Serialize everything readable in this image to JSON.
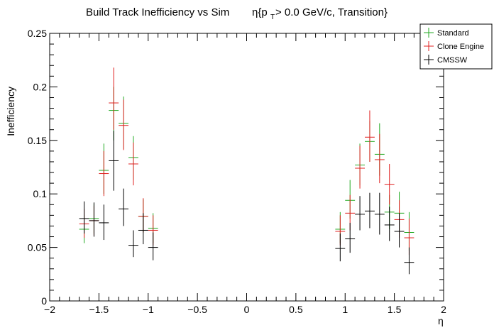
{
  "chart_data": {
    "type": "scatter",
    "title": "Build Track Inefficiency vs Sim",
    "title_eta": "η{p",
    "title_sub": "T",
    "title_rest": " > 0.0 GeV/c, Transition}",
    "xlabel": "η",
    "ylabel": "Inefficiency",
    "xlim": [
      -2,
      2
    ],
    "ylim": [
      0,
      0.25
    ],
    "x_bin_halfwidth": 0.05,
    "x_ticks": [
      {
        "value": -2,
        "label": "−2"
      },
      {
        "value": -1.5,
        "label": "−1.5"
      },
      {
        "value": -1,
        "label": "−1"
      },
      {
        "value": -0.5,
        "label": "−0.5"
      },
      {
        "value": 0,
        "label": "0"
      },
      {
        "value": 0.5,
        "label": "0.5"
      },
      {
        "value": 1,
        "label": "1"
      },
      {
        "value": 1.5,
        "label": "1.5"
      },
      {
        "value": 2,
        "label": "2"
      }
    ],
    "y_ticks": [
      {
        "value": 0,
        "label": "0"
      },
      {
        "value": 0.05,
        "label": "0.05"
      },
      {
        "value": 0.1,
        "label": "0.1"
      },
      {
        "value": 0.15,
        "label": "0.15"
      },
      {
        "value": 0.2,
        "label": "0.2"
      },
      {
        "value": 0.25,
        "label": "0.25"
      }
    ],
    "legend_position": "top-right",
    "series": [
      {
        "name": "Standard",
        "color": "#22aa22",
        "points": [
          {
            "x": -1.65,
            "y": 0.067,
            "lo": 0.054,
            "hi": 0.08
          },
          {
            "x": -1.55,
            "y": 0.077,
            "lo": 0.063,
            "hi": 0.091
          },
          {
            "x": -1.45,
            "y": 0.122,
            "lo": 0.1,
            "hi": 0.147
          },
          {
            "x": -1.35,
            "y": 0.178,
            "lo": 0.15,
            "hi": 0.2
          },
          {
            "x": -1.25,
            "y": 0.166,
            "lo": 0.142,
            "hi": 0.191
          },
          {
            "x": -1.15,
            "y": 0.134,
            "lo": 0.113,
            "hi": 0.154
          },
          {
            "x": -1.05,
            "y": 0.079,
            "lo": 0.064,
            "hi": 0.095
          },
          {
            "x": -0.95,
            "y": 0.068,
            "lo": 0.054,
            "hi": 0.082
          },
          {
            "x": 0.95,
            "y": 0.067,
            "lo": 0.054,
            "hi": 0.083
          },
          {
            "x": 1.05,
            "y": 0.094,
            "lo": 0.077,
            "hi": 0.113
          },
          {
            "x": 1.15,
            "y": 0.127,
            "lo": 0.108,
            "hi": 0.147
          },
          {
            "x": 1.25,
            "y": 0.149,
            "lo": 0.13,
            "hi": 0.168
          },
          {
            "x": 1.35,
            "y": 0.137,
            "lo": 0.117,
            "hi": 0.166
          },
          {
            "x": 1.45,
            "y": 0.083,
            "lo": 0.067,
            "hi": 0.099
          },
          {
            "x": 1.55,
            "y": 0.082,
            "lo": 0.063,
            "hi": 0.102
          },
          {
            "x": 1.65,
            "y": 0.064,
            "lo": 0.047,
            "hi": 0.083
          }
        ]
      },
      {
        "name": "Clone Engine",
        "color": "#e02020",
        "points": [
          {
            "x": -1.65,
            "y": 0.072,
            "lo": 0.059,
            "hi": 0.086
          },
          {
            "x": -1.55,
            "y": 0.075,
            "lo": 0.061,
            "hi": 0.089
          },
          {
            "x": -1.45,
            "y": 0.119,
            "lo": 0.098,
            "hi": 0.14
          },
          {
            "x": -1.35,
            "y": 0.185,
            "lo": 0.16,
            "hi": 0.218
          },
          {
            "x": -1.25,
            "y": 0.164,
            "lo": 0.141,
            "hi": 0.188
          },
          {
            "x": -1.15,
            "y": 0.128,
            "lo": 0.108,
            "hi": 0.148
          },
          {
            "x": -1.05,
            "y": 0.079,
            "lo": 0.064,
            "hi": 0.096
          },
          {
            "x": -0.95,
            "y": 0.066,
            "lo": 0.052,
            "hi": 0.08
          },
          {
            "x": 0.95,
            "y": 0.065,
            "lo": 0.052,
            "hi": 0.08
          },
          {
            "x": 1.05,
            "y": 0.082,
            "lo": 0.066,
            "hi": 0.099
          },
          {
            "x": 1.15,
            "y": 0.124,
            "lo": 0.105,
            "hi": 0.145
          },
          {
            "x": 1.25,
            "y": 0.153,
            "lo": 0.13,
            "hi": 0.178
          },
          {
            "x": 1.35,
            "y": 0.132,
            "lo": 0.11,
            "hi": 0.156
          },
          {
            "x": 1.45,
            "y": 0.109,
            "lo": 0.09,
            "hi": 0.128
          },
          {
            "x": 1.55,
            "y": 0.076,
            "lo": 0.059,
            "hi": 0.094
          },
          {
            "x": 1.65,
            "y": 0.059,
            "lo": 0.043,
            "hi": 0.077
          }
        ]
      },
      {
        "name": "CMSSW",
        "color": "#000000",
        "points": [
          {
            "x": -1.65,
            "y": 0.077,
            "lo": 0.063,
            "hi": 0.093
          },
          {
            "x": -1.55,
            "y": 0.075,
            "lo": 0.06,
            "hi": 0.092
          },
          {
            "x": -1.45,
            "y": 0.073,
            "lo": 0.057,
            "hi": 0.09
          },
          {
            "x": -1.35,
            "y": 0.131,
            "lo": 0.103,
            "hi": 0.159
          },
          {
            "x": -1.25,
            "y": 0.086,
            "lo": 0.07,
            "hi": 0.105
          },
          {
            "x": -1.15,
            "y": 0.052,
            "lo": 0.041,
            "hi": 0.066
          },
          {
            "x": -1.05,
            "y": 0.066,
            "lo": 0.053,
            "hi": 0.082
          },
          {
            "x": -0.95,
            "y": 0.05,
            "lo": 0.038,
            "hi": 0.064
          },
          {
            "x": 0.95,
            "y": 0.049,
            "lo": 0.037,
            "hi": 0.063
          },
          {
            "x": 1.05,
            "y": 0.058,
            "lo": 0.045,
            "hi": 0.073
          },
          {
            "x": 1.15,
            "y": 0.081,
            "lo": 0.066,
            "hi": 0.098
          },
          {
            "x": 1.25,
            "y": 0.084,
            "lo": 0.068,
            "hi": 0.101
          },
          {
            "x": 1.35,
            "y": 0.081,
            "lo": 0.062,
            "hi": 0.101
          },
          {
            "x": 1.45,
            "y": 0.071,
            "lo": 0.056,
            "hi": 0.088
          },
          {
            "x": 1.55,
            "y": 0.065,
            "lo": 0.05,
            "hi": 0.082
          },
          {
            "x": 1.65,
            "y": 0.036,
            "lo": 0.025,
            "hi": 0.05
          }
        ]
      }
    ]
  }
}
